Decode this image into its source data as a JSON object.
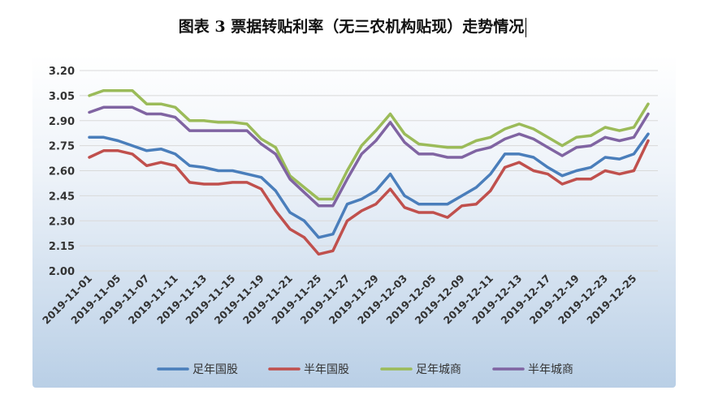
{
  "title": "图表 3  票据转贴利率（无三农机构贴现）走势情况",
  "chart_data": {
    "type": "line",
    "title": "图表 3  票据转贴利率（无三农机构贴现）走势情况",
    "xlabel": "",
    "ylabel": "",
    "ylim": [
      2.0,
      3.2
    ],
    "yticks": [
      "3.20",
      "3.05",
      "2.90",
      "2.75",
      "2.60",
      "2.45",
      "2.30",
      "2.15",
      "2.00"
    ],
    "grid": "horizontal",
    "legend_position": "bottom",
    "x_tick_labels": [
      "2019-11-01",
      "2019-11-05",
      "2019-11-07",
      "2019-11-11",
      "2019-11-13",
      "2019-11-15",
      "2019-11-19",
      "2019-11-21",
      "2019-11-25",
      "2019-11-27",
      "2019-11-29",
      "2019-12-03",
      "2019-12-05",
      "2019-12-09",
      "2019-12-11",
      "2019-12-13",
      "2019-12-17",
      "2019-12-19",
      "2019-12-23",
      "2019-12-25"
    ],
    "series": [
      {
        "name": "足年国股",
        "color": "#4a7ebb",
        "values": [
          2.8,
          2.8,
          2.78,
          2.75,
          2.72,
          2.73,
          2.7,
          2.63,
          2.62,
          2.6,
          2.6,
          2.58,
          2.56,
          2.48,
          2.35,
          2.3,
          2.2,
          2.22,
          2.4,
          2.43,
          2.48,
          2.58,
          2.45,
          2.4,
          2.4,
          2.4,
          2.45,
          2.5,
          2.58,
          2.7,
          2.7,
          2.68,
          2.62,
          2.57,
          2.6,
          2.62,
          2.68,
          2.67,
          2.7,
          2.82
        ]
      },
      {
        "name": "半年国股",
        "color": "#c0504d",
        "values": [
          2.68,
          2.72,
          2.72,
          2.7,
          2.63,
          2.65,
          2.63,
          2.53,
          2.52,
          2.52,
          2.53,
          2.53,
          2.49,
          2.36,
          2.25,
          2.2,
          2.1,
          2.12,
          2.3,
          2.36,
          2.4,
          2.49,
          2.38,
          2.35,
          2.35,
          2.32,
          2.39,
          2.4,
          2.48,
          2.62,
          2.65,
          2.6,
          2.58,
          2.52,
          2.55,
          2.55,
          2.6,
          2.58,
          2.6,
          2.78
        ]
      },
      {
        "name": "足年城商",
        "color": "#9bbb59",
        "values": [
          3.05,
          3.08,
          3.08,
          3.08,
          3.0,
          3.0,
          2.98,
          2.9,
          2.9,
          2.89,
          2.89,
          2.88,
          2.79,
          2.74,
          2.57,
          2.5,
          2.43,
          2.43,
          2.6,
          2.75,
          2.84,
          2.94,
          2.82,
          2.76,
          2.75,
          2.74,
          2.74,
          2.78,
          2.8,
          2.85,
          2.88,
          2.85,
          2.8,
          2.75,
          2.8,
          2.81,
          2.86,
          2.84,
          2.86,
          3.0
        ]
      },
      {
        "name": "半年城商",
        "color": "#8064a2",
        "values": [
          2.95,
          2.98,
          2.98,
          2.98,
          2.94,
          2.94,
          2.92,
          2.84,
          2.84,
          2.84,
          2.84,
          2.84,
          2.76,
          2.7,
          2.55,
          2.47,
          2.39,
          2.39,
          2.55,
          2.7,
          2.78,
          2.89,
          2.77,
          2.7,
          2.7,
          2.68,
          2.68,
          2.72,
          2.74,
          2.79,
          2.82,
          2.79,
          2.74,
          2.69,
          2.74,
          2.75,
          2.8,
          2.78,
          2.8,
          2.94
        ]
      }
    ]
  }
}
